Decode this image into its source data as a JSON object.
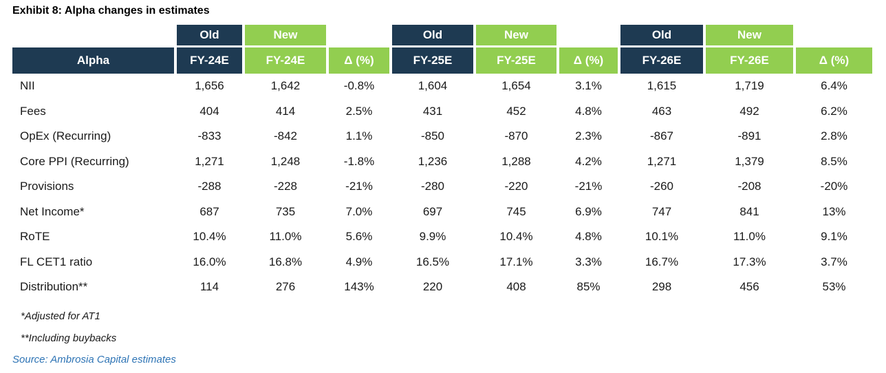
{
  "title": "Exhibit 8: Alpha changes in estimates",
  "colors": {
    "header_navy": "#1E3A52",
    "header_green": "#92CE50",
    "source_blue": "#2E74B5"
  },
  "table": {
    "label_header": "Alpha",
    "groups": [
      {
        "old_label": "Old",
        "new_label": "New",
        "old_col": "FY-24E",
        "new_col": "FY-24E",
        "delta_col": "Δ (%)"
      },
      {
        "old_label": "Old",
        "new_label": "New",
        "old_col": "FY-25E",
        "new_col": "FY-25E",
        "delta_col": "Δ (%)"
      },
      {
        "old_label": "Old",
        "new_label": "New",
        "old_col": "FY-26E",
        "new_col": "FY-26E",
        "delta_col": "Δ (%)"
      }
    ],
    "rows": [
      {
        "label": "NII",
        "values": [
          "1,656",
          "1,642",
          "-0.8%",
          "1,604",
          "1,654",
          "3.1%",
          "1,615",
          "1,719",
          "6.4%"
        ]
      },
      {
        "label": "Fees",
        "values": [
          "404",
          "414",
          "2.5%",
          "431",
          "452",
          "4.8%",
          "463",
          "492",
          "6.2%"
        ]
      },
      {
        "label": "OpEx (Recurring)",
        "values": [
          "-833",
          "-842",
          "1.1%",
          "-850",
          "-870",
          "2.3%",
          "-867",
          "-891",
          "2.8%"
        ]
      },
      {
        "label": "Core PPI (Recurring)",
        "values": [
          "1,271",
          "1,248",
          "-1.8%",
          "1,236",
          "1,288",
          "4.2%",
          "1,271",
          "1,379",
          "8.5%"
        ]
      },
      {
        "label": "Provisions",
        "values": [
          "-288",
          "-228",
          "-21%",
          "-280",
          "-220",
          "-21%",
          "-260",
          "-208",
          "-20%"
        ]
      },
      {
        "label": "Net Income*",
        "values": [
          "687",
          "735",
          "7.0%",
          "697",
          "745",
          "6.9%",
          "747",
          "841",
          "13%"
        ]
      },
      {
        "label": "RoTE",
        "values": [
          "10.4%",
          "11.0%",
          "5.6%",
          "9.9%",
          "10.4%",
          "4.8%",
          "10.1%",
          "11.0%",
          "9.1%"
        ]
      },
      {
        "label": "FL CET1 ratio",
        "values": [
          "16.0%",
          "16.8%",
          "4.9%",
          "16.5%",
          "17.1%",
          "3.3%",
          "16.7%",
          "17.3%",
          "3.7%"
        ]
      },
      {
        "label": "Distribution**",
        "values": [
          "114",
          "276",
          "143%",
          "220",
          "408",
          "85%",
          "298",
          "456",
          "53%"
        ]
      }
    ]
  },
  "footnotes": [
    "*Adjusted for AT1",
    "**Including buybacks"
  ],
  "source": "Source: Ambrosia Capital estimates"
}
